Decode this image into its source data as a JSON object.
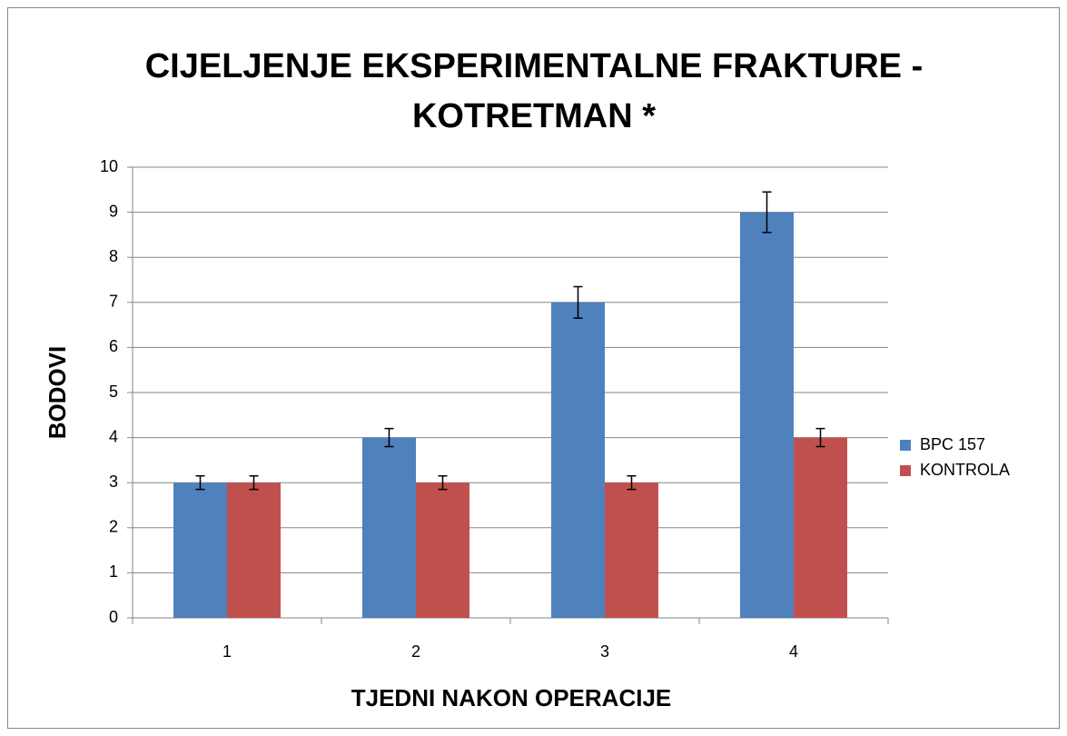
{
  "chart_data": {
    "type": "bar",
    "title": [
      "CIJELJENJE EKSPERIMENTALNE FRAKTURE -",
      "KOTRETMAN *"
    ],
    "x_label": "TJEDNI NAKON OPERACIJE",
    "y_label": "BODOVI",
    "categories": [
      "1",
      "2",
      "3",
      "4"
    ],
    "series": [
      {
        "name": "BPC 157",
        "color": "#4f81bd",
        "values": [
          3,
          4,
          7,
          9
        ],
        "errors": [
          0.15,
          0.2,
          0.35,
          0.45
        ]
      },
      {
        "name": "KONTROLA",
        "color": "#c0504d",
        "values": [
          3,
          3,
          3,
          4
        ],
        "errors": [
          0.15,
          0.15,
          0.15,
          0.2
        ]
      }
    ],
    "ylim": [
      0,
      10
    ],
    "yticks": [
      0,
      1,
      2,
      3,
      4,
      5,
      6,
      7,
      8,
      9,
      10
    ],
    "grid": true,
    "legend": "right"
  }
}
